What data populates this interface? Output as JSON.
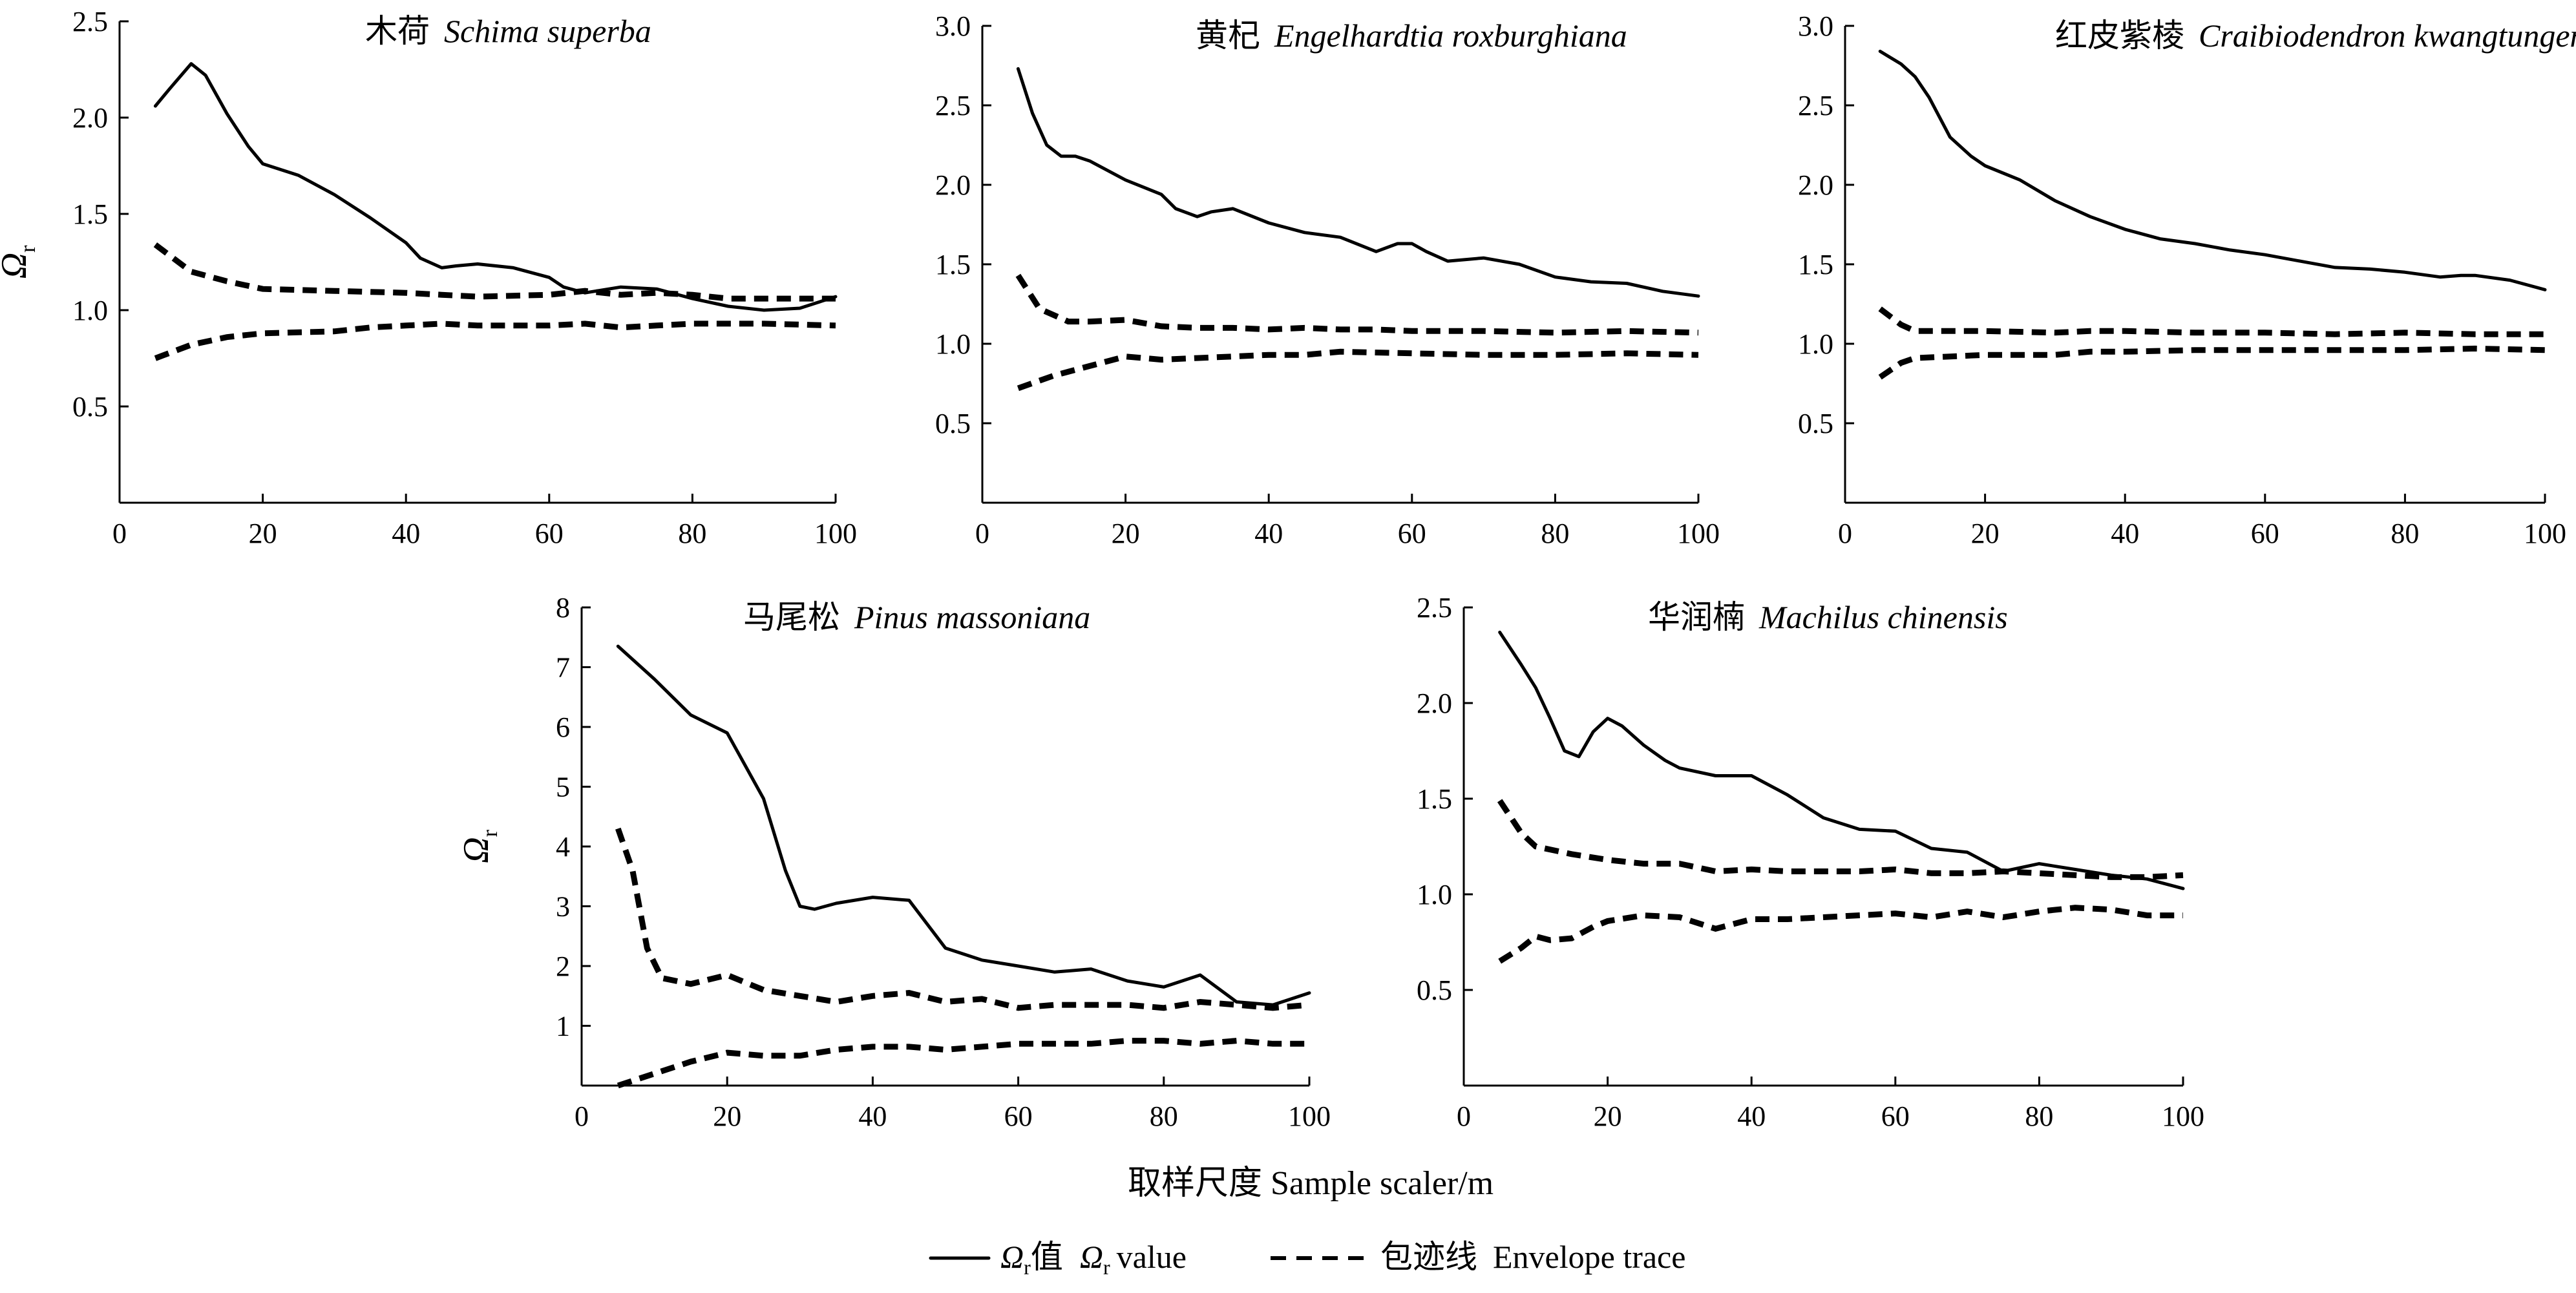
{
  "chart_data": [
    {
      "type": "line",
      "title_cn": "木荷",
      "title_latin": "Schima superba",
      "ylabel": "Ω",
      "ylabel_sub": "r",
      "xlim": [
        0,
        100
      ],
      "ylim": [
        0,
        2.5
      ],
      "xticks": [
        0,
        20,
        40,
        60,
        80,
        100
      ],
      "yticks": [
        0.5,
        1.0,
        1.5,
        2.0,
        2.5
      ],
      "series": [
        {
          "role": "value",
          "x": [
            5,
            7,
            10,
            12,
            15,
            18,
            20,
            25,
            30,
            35,
            40,
            42,
            45,
            47,
            50,
            55,
            60,
            62,
            65,
            70,
            75,
            80,
            85,
            90,
            95,
            100
          ],
          "y": [
            2.06,
            2.15,
            2.28,
            2.22,
            2.02,
            1.85,
            1.76,
            1.7,
            1.6,
            1.48,
            1.35,
            1.27,
            1.22,
            1.23,
            1.24,
            1.22,
            1.17,
            1.12,
            1.09,
            1.12,
            1.11,
            1.06,
            1.02,
            1.0,
            1.01,
            1.07
          ]
        },
        {
          "role": "upper",
          "x": [
            5,
            10,
            15,
            20,
            30,
            40,
            45,
            50,
            60,
            65,
            70,
            75,
            80,
            85,
            90,
            95,
            100
          ],
          "y": [
            1.34,
            1.2,
            1.15,
            1.11,
            1.1,
            1.09,
            1.08,
            1.07,
            1.08,
            1.1,
            1.08,
            1.09,
            1.08,
            1.06,
            1.06,
            1.06,
            1.06
          ]
        },
        {
          "role": "lower",
          "x": [
            5,
            10,
            15,
            20,
            30,
            35,
            40,
            45,
            50,
            60,
            65,
            70,
            75,
            80,
            90,
            100
          ],
          "y": [
            0.75,
            0.82,
            0.86,
            0.88,
            0.89,
            0.91,
            0.92,
            0.93,
            0.92,
            0.92,
            0.93,
            0.91,
            0.92,
            0.93,
            0.93,
            0.92
          ]
        }
      ]
    },
    {
      "type": "line",
      "title_cn": "黄杞",
      "title_latin": "Engelhardtia roxburghiana",
      "xlim": [
        0,
        100
      ],
      "ylim": [
        0,
        3.0
      ],
      "xticks": [
        0,
        20,
        40,
        60,
        80,
        100
      ],
      "yticks": [
        0.5,
        1.0,
        1.5,
        2.0,
        2.5,
        3.0
      ],
      "series": [
        {
          "role": "value",
          "x": [
            5,
            7,
            9,
            11,
            13,
            15,
            20,
            25,
            27,
            30,
            32,
            35,
            40,
            45,
            50,
            55,
            58,
            60,
            62,
            65,
            70,
            75,
            80,
            85,
            90,
            95,
            100
          ],
          "y": [
            2.73,
            2.45,
            2.25,
            2.18,
            2.18,
            2.15,
            2.03,
            1.94,
            1.85,
            1.8,
            1.83,
            1.85,
            1.76,
            1.7,
            1.67,
            1.58,
            1.63,
            1.63,
            1.58,
            1.52,
            1.54,
            1.5,
            1.42,
            1.39,
            1.38,
            1.33,
            1.3
          ]
        },
        {
          "role": "upper",
          "x": [
            5,
            8,
            12,
            15,
            20,
            25,
            30,
            35,
            40,
            45,
            50,
            55,
            60,
            70,
            80,
            90,
            100
          ],
          "y": [
            1.43,
            1.22,
            1.14,
            1.14,
            1.15,
            1.11,
            1.1,
            1.1,
            1.09,
            1.1,
            1.09,
            1.09,
            1.08,
            1.08,
            1.07,
            1.08,
            1.07
          ]
        },
        {
          "role": "lower",
          "x": [
            5,
            10,
            15,
            20,
            25,
            30,
            35,
            40,
            45,
            50,
            60,
            70,
            80,
            90,
            100
          ],
          "y": [
            0.72,
            0.8,
            0.86,
            0.92,
            0.9,
            0.91,
            0.92,
            0.93,
            0.93,
            0.95,
            0.94,
            0.93,
            0.93,
            0.94,
            0.93
          ]
        }
      ]
    },
    {
      "type": "line",
      "title_cn": "红皮紫棱",
      "title_latin": "Craibiodendron kwangtungense",
      "xlim": [
        0,
        100
      ],
      "ylim": [
        0,
        3.0
      ],
      "xticks": [
        0,
        20,
        40,
        60,
        80,
        100
      ],
      "yticks": [
        0.5,
        1.0,
        1.5,
        2.0,
        2.5,
        3.0
      ],
      "series": [
        {
          "role": "value",
          "x": [
            5,
            8,
            10,
            12,
            15,
            18,
            20,
            25,
            30,
            35,
            40,
            45,
            50,
            55,
            60,
            65,
            70,
            75,
            80,
            85,
            88,
            90,
            95,
            100
          ],
          "y": [
            2.84,
            2.76,
            2.68,
            2.55,
            2.3,
            2.18,
            2.12,
            2.03,
            1.9,
            1.8,
            1.72,
            1.66,
            1.63,
            1.59,
            1.56,
            1.52,
            1.48,
            1.47,
            1.45,
            1.42,
            1.43,
            1.43,
            1.4,
            1.34
          ]
        },
        {
          "role": "upper",
          "x": [
            5,
            8,
            10,
            15,
            20,
            30,
            35,
            40,
            50,
            60,
            70,
            80,
            90,
            100
          ],
          "y": [
            1.22,
            1.12,
            1.08,
            1.08,
            1.08,
            1.07,
            1.08,
            1.08,
            1.07,
            1.07,
            1.06,
            1.07,
            1.06,
            1.06
          ]
        },
        {
          "role": "lower",
          "x": [
            5,
            8,
            10,
            15,
            20,
            30,
            35,
            40,
            50,
            60,
            70,
            80,
            90,
            100
          ],
          "y": [
            0.79,
            0.88,
            0.91,
            0.92,
            0.93,
            0.93,
            0.95,
            0.95,
            0.96,
            0.96,
            0.96,
            0.96,
            0.97,
            0.96
          ]
        }
      ]
    },
    {
      "type": "line",
      "title_cn": "马尾松",
      "title_latin": "Pinus massoniana",
      "ylabel": "Ω",
      "ylabel_sub": "r",
      "xlim": [
        0,
        100
      ],
      "ylim": [
        0,
        8
      ],
      "xticks": [
        0,
        20,
        40,
        60,
        80,
        100
      ],
      "yticks": [
        1,
        2,
        3,
        4,
        5,
        6,
        7,
        8
      ],
      "series": [
        {
          "role": "value",
          "x": [
            5,
            10,
            15,
            20,
            25,
            28,
            30,
            32,
            35,
            40,
            45,
            50,
            55,
            60,
            65,
            70,
            75,
            80,
            85,
            90,
            95,
            100
          ],
          "y": [
            7.35,
            6.8,
            6.2,
            5.9,
            4.8,
            3.6,
            3.0,
            2.95,
            3.05,
            3.15,
            3.1,
            2.3,
            2.1,
            2.0,
            1.9,
            1.95,
            1.75,
            1.65,
            1.85,
            1.4,
            1.35,
            1.55
          ]
        },
        {
          "role": "upper",
          "x": [
            5,
            7,
            9,
            11,
            15,
            20,
            25,
            30,
            35,
            40,
            45,
            50,
            55,
            60,
            65,
            70,
            75,
            80,
            85,
            90,
            95,
            100
          ],
          "y": [
            4.3,
            3.6,
            2.3,
            1.8,
            1.7,
            1.85,
            1.6,
            1.5,
            1.4,
            1.5,
            1.55,
            1.4,
            1.45,
            1.3,
            1.35,
            1.35,
            1.35,
            1.3,
            1.4,
            1.35,
            1.3,
            1.35
          ]
        },
        {
          "role": "lower",
          "x": [
            5,
            10,
            15,
            20,
            25,
            30,
            35,
            40,
            45,
            50,
            55,
            60,
            65,
            70,
            75,
            80,
            85,
            90,
            95,
            100
          ],
          "y": [
            0.0,
            0.2,
            0.4,
            0.55,
            0.5,
            0.5,
            0.6,
            0.65,
            0.65,
            0.6,
            0.65,
            0.7,
            0.7,
            0.7,
            0.75,
            0.75,
            0.7,
            0.75,
            0.7,
            0.7
          ]
        }
      ]
    },
    {
      "type": "line",
      "title_cn": "华润楠",
      "title_latin": "Machilus chinensis",
      "xlim": [
        0,
        100
      ],
      "ylim": [
        0,
        2.5
      ],
      "xticks": [
        0,
        20,
        40,
        60,
        80,
        100
      ],
      "yticks": [
        0.5,
        1.0,
        1.5,
        2.0,
        2.5
      ],
      "series": [
        {
          "role": "value",
          "x": [
            5,
            8,
            10,
            12,
            14,
            16,
            18,
            20,
            22,
            25,
            28,
            30,
            35,
            40,
            45,
            50,
            55,
            60,
            65,
            70,
            75,
            80,
            85,
            90,
            95,
            100
          ],
          "y": [
            2.37,
            2.2,
            2.08,
            1.92,
            1.75,
            1.72,
            1.85,
            1.92,
            1.88,
            1.78,
            1.7,
            1.66,
            1.62,
            1.62,
            1.52,
            1.4,
            1.34,
            1.33,
            1.24,
            1.22,
            1.12,
            1.16,
            1.13,
            1.1,
            1.08,
            1.03
          ]
        },
        {
          "role": "upper",
          "x": [
            5,
            8,
            10,
            15,
            20,
            25,
            30,
            35,
            40,
            45,
            50,
            55,
            60,
            65,
            70,
            75,
            80,
            85,
            90,
            95,
            100
          ],
          "y": [
            1.49,
            1.32,
            1.25,
            1.21,
            1.18,
            1.16,
            1.16,
            1.12,
            1.13,
            1.12,
            1.12,
            1.12,
            1.13,
            1.11,
            1.11,
            1.12,
            1.11,
            1.1,
            1.09,
            1.09,
            1.1
          ]
        },
        {
          "role": "lower",
          "x": [
            5,
            8,
            10,
            12,
            15,
            18,
            20,
            25,
            30,
            35,
            40,
            45,
            50,
            60,
            65,
            70,
            75,
            80,
            85,
            90,
            95,
            100
          ],
          "y": [
            0.65,
            0.72,
            0.78,
            0.76,
            0.77,
            0.83,
            0.86,
            0.89,
            0.88,
            0.82,
            0.87,
            0.87,
            0.88,
            0.9,
            0.88,
            0.91,
            0.88,
            0.91,
            0.93,
            0.92,
            0.89,
            0.89
          ]
        }
      ]
    }
  ],
  "xlabel": "取样尺度  Sample scaler/m",
  "legend": {
    "solid_cn": "值",
    "solid_en": "value",
    "symbol": "Ω",
    "symbol_sub": "r",
    "dashed_cn": "包迹线",
    "dashed_en": "Envelope trace"
  }
}
